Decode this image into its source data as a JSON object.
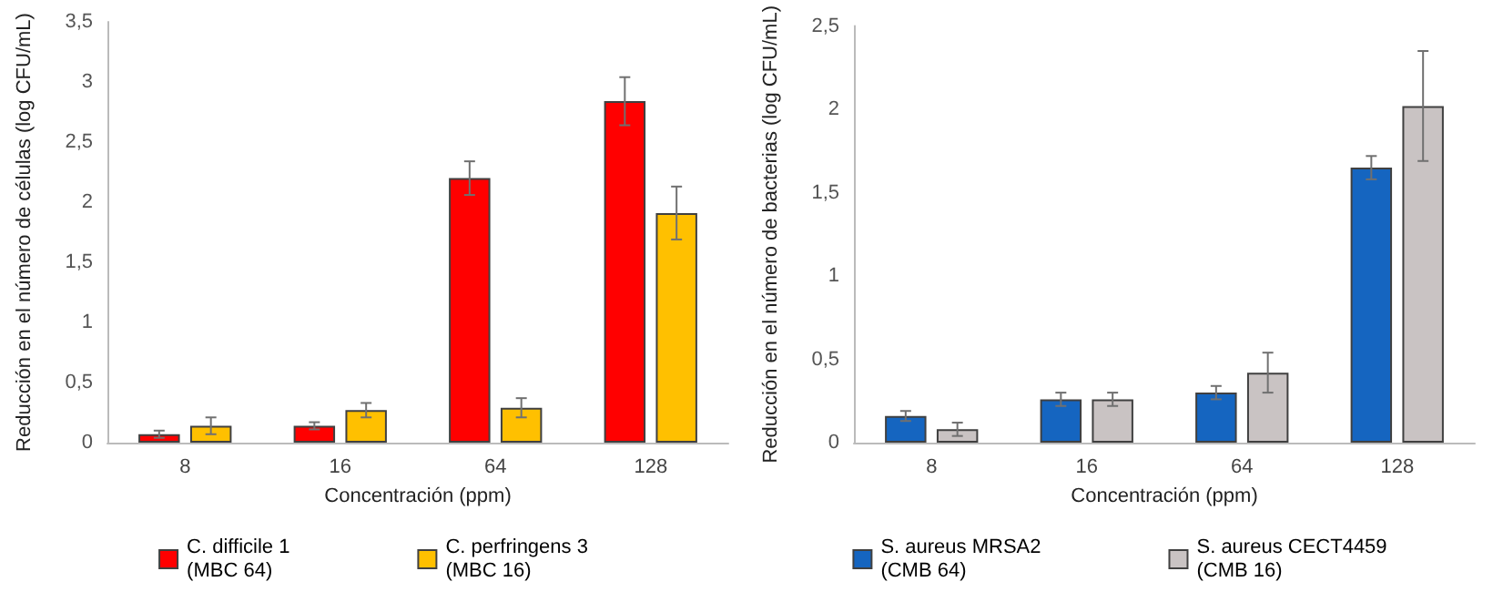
{
  "chart_data": [
    {
      "type": "bar",
      "xlabel": "Concentración (ppm)",
      "ylabel": "Reducción en el número de células (log CFU/mL)",
      "categories": [
        "8",
        "16",
        "64",
        "128"
      ],
      "series": [
        {
          "name": "C. difficile 1\n(MBC 64)",
          "color": "#ff0000",
          "values": [
            0.07,
            0.14,
            2.2,
            2.84
          ],
          "errors": [
            0.03,
            0.03,
            0.14,
            0.2
          ]
        },
        {
          "name": "C. perfringens 3\n(MBC 16)",
          "color": "#ffc000",
          "values": [
            0.14,
            0.27,
            0.29,
            1.91
          ],
          "errors": [
            0.07,
            0.06,
            0.08,
            0.22
          ]
        }
      ],
      "ylim": [
        0,
        3.5
      ],
      "yticks": [
        0,
        {
          "value": 0.5,
          "label": "0,5"
        },
        1,
        {
          "value": 1.5,
          "label": "1,5"
        },
        2,
        {
          "value": 2.5,
          "label": "2,5"
        },
        3,
        {
          "value": 3.5,
          "label": "3,5"
        }
      ],
      "grid": false,
      "legend": "bottom"
    },
    {
      "type": "bar",
      "xlabel": "Concentración (ppm)",
      "ylabel": "Reducción en el número de bacterias (log CFU/mL)",
      "categories": [
        "8",
        "16",
        "64",
        "128"
      ],
      "series": [
        {
          "name": "S. aureus MRSA2\n(CMB 64)",
          "color": "#1565c0",
          "values": [
            0.16,
            0.26,
            0.3,
            1.65
          ],
          "errors": [
            0.03,
            0.04,
            0.04,
            0.07
          ]
        },
        {
          "name": "S. aureus CECT4459\n(CMB 16)",
          "color": "#c9c3c3",
          "values": [
            0.08,
            0.26,
            0.42,
            2.02
          ],
          "errors": [
            0.04,
            0.04,
            0.12,
            0.33
          ]
        }
      ],
      "ylim": [
        0,
        2.5
      ],
      "yticks": [
        0,
        {
          "value": 0.5,
          "label": "0,5"
        },
        1,
        {
          "value": 1.5,
          "label": "1,5"
        },
        2,
        {
          "value": 2.5,
          "label": "2,5"
        }
      ],
      "grid": false,
      "legend": "bottom"
    }
  ]
}
